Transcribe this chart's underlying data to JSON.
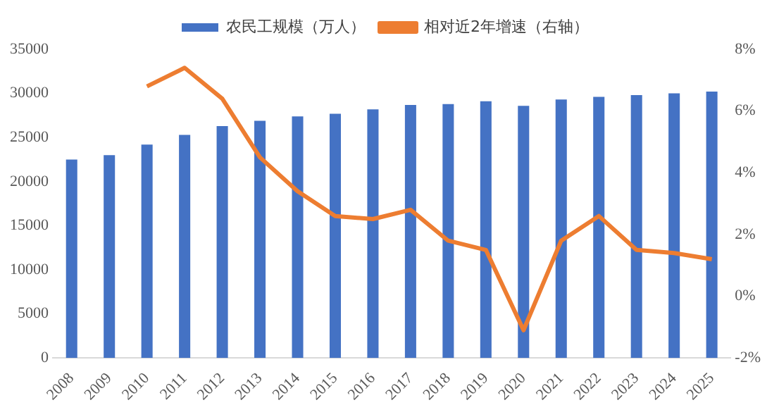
{
  "chart_data": {
    "type": "bar",
    "categories": [
      "2008",
      "2009",
      "2010",
      "2011",
      "2012",
      "2013",
      "2014",
      "2015",
      "2016",
      "2017",
      "2018",
      "2019",
      "2020",
      "2021",
      "2022",
      "2023",
      "2024",
      "2025"
    ],
    "series": [
      {
        "name": "农民工规模（万人）",
        "color": "#4472c4",
        "values": [
          22500,
          23000,
          24200,
          25300,
          26300,
          26900,
          27400,
          27700,
          28200,
          28700,
          28800,
          29100,
          28600,
          29300,
          29600,
          29800,
          30000,
          30200
        ]
      },
      {
        "name": "相对近2年增速（右轴）",
        "type": "line",
        "axis": "y2",
        "color": "#ed7d31",
        "values": [
          null,
          null,
          6.8,
          7.4,
          6.4,
          4.5,
          3.4,
          2.6,
          2.5,
          2.8,
          1.8,
          1.5,
          -1.1,
          1.8,
          2.6,
          1.5,
          1.4,
          1.2
        ]
      }
    ],
    "ylim": [
      0,
      35000
    ],
    "yticks": [
      0,
      5000,
      10000,
      15000,
      20000,
      25000,
      30000,
      35000
    ],
    "y2lim": [
      -2,
      8
    ],
    "y2ticks": [
      {
        "value": -2,
        "label": "-2%"
      },
      {
        "value": 0,
        "label": "0%"
      },
      {
        "value": 2,
        "label": "2%"
      },
      {
        "value": 4,
        "label": "4%"
      },
      {
        "value": 6,
        "label": "6%"
      },
      {
        "value": 8,
        "label": "8%"
      }
    ],
    "grid": false,
    "legend": "top",
    "marker": "none"
  }
}
